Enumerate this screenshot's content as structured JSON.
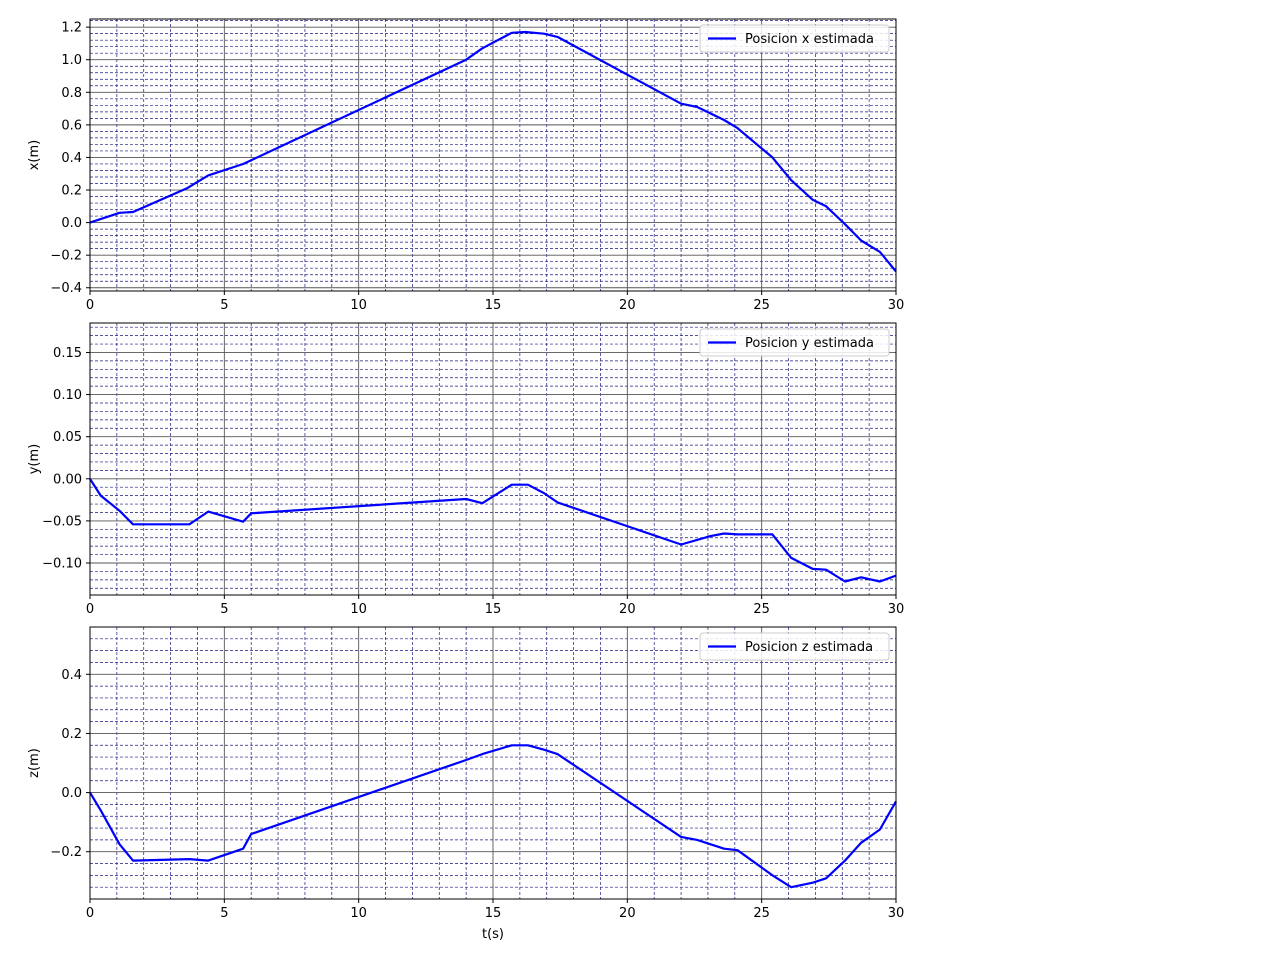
{
  "chart_data": [
    {
      "type": "line",
      "xlabel": "",
      "ylabel": "x(m)",
      "xlim": [
        0,
        30
      ],
      "ylim": [
        -0.42,
        1.25
      ],
      "xticks": [
        0,
        5,
        10,
        15,
        20,
        25,
        30
      ],
      "xtick_labels": [
        "0",
        "5",
        "10",
        "15",
        "20",
        "25",
        "30"
      ],
      "yticks": [
        -0.4,
        -0.2,
        0.0,
        0.2,
        0.4,
        0.6,
        0.8,
        1.0,
        1.2
      ],
      "ytick_labels": [
        "−0.4",
        "−0.2",
        "0.0",
        "0.2",
        "0.4",
        "0.6",
        "0.8",
        "1.0",
        "1.2"
      ],
      "grid": true,
      "minor_grid": true,
      "legend": "top-right",
      "series": [
        {
          "name": "Posicion x estimada",
          "color": "#0000ff",
          "x": [
            0,
            1.1,
            1.6,
            3.6,
            4.4,
            5.7,
            14.0,
            14.6,
            15.7,
            16.2,
            16.9,
            17.4,
            22.0,
            22.6,
            23.1,
            23.6,
            24.1,
            25.4,
            26.1,
            26.9,
            27.4,
            28.1,
            28.7,
            29.4,
            30.0
          ],
          "y": [
            0.0,
            0.06,
            0.065,
            0.21,
            0.29,
            0.36,
            1.0,
            1.07,
            1.165,
            1.17,
            1.16,
            1.14,
            0.73,
            0.71,
            0.67,
            0.63,
            0.58,
            0.4,
            0.26,
            0.14,
            0.1,
            -0.01,
            -0.11,
            -0.18,
            -0.3
          ]
        }
      ]
    },
    {
      "type": "line",
      "xlabel": "",
      "ylabel": "y(m)",
      "xlim": [
        0,
        30
      ],
      "ylim": [
        -0.138,
        0.185
      ],
      "xticks": [
        0,
        5,
        10,
        15,
        20,
        25,
        30
      ],
      "xtick_labels": [
        "0",
        "5",
        "10",
        "15",
        "20",
        "25",
        "30"
      ],
      "yticks": [
        -0.1,
        -0.05,
        0.0,
        0.05,
        0.1,
        0.15
      ],
      "ytick_labels": [
        "−0.10",
        "−0.05",
        "0.00",
        "0.05",
        "0.10",
        "0.15"
      ],
      "grid": true,
      "minor_grid": true,
      "legend": "top-right",
      "series": [
        {
          "name": "Posicion y estimada",
          "color": "#0000ff",
          "x": [
            0,
            0.4,
            1.1,
            1.6,
            3.7,
            4.4,
            5.7,
            6.0,
            14.0,
            14.6,
            15.7,
            16.3,
            16.9,
            17.4,
            22.0,
            23.1,
            23.6,
            24.1,
            25.4,
            26.1,
            26.9,
            27.4,
            28.1,
            28.7,
            29.4,
            30.0
          ],
          "y": [
            0.0,
            -0.02,
            -0.038,
            -0.054,
            -0.054,
            -0.039,
            -0.051,
            -0.041,
            -0.024,
            -0.029,
            -0.007,
            -0.007,
            -0.017,
            -0.028,
            -0.078,
            -0.068,
            -0.065,
            -0.066,
            -0.066,
            -0.094,
            -0.107,
            -0.108,
            -0.122,
            -0.117,
            -0.122,
            -0.115
          ]
        }
      ]
    },
    {
      "type": "line",
      "xlabel": "t(s)",
      "ylabel": "z(m)",
      "xlim": [
        0,
        30
      ],
      "ylim": [
        -0.36,
        0.56
      ],
      "xticks": [
        0,
        5,
        10,
        15,
        20,
        25,
        30
      ],
      "xtick_labels": [
        "0",
        "5",
        "10",
        "15",
        "20",
        "25",
        "30"
      ],
      "yticks": [
        -0.2,
        0.0,
        0.2,
        0.4
      ],
      "ytick_labels": [
        "−0.2",
        "0.0",
        "0.2",
        "0.4"
      ],
      "grid": true,
      "minor_grid": true,
      "legend": "top-right",
      "series": [
        {
          "name": "Posicion z estimada",
          "color": "#0000ff",
          "x": [
            0,
            0.4,
            1.1,
            1.6,
            3.7,
            4.4,
            5.7,
            6.0,
            14.0,
            14.6,
            15.7,
            16.3,
            16.9,
            17.4,
            22.0,
            22.6,
            23.1,
            23.6,
            24.1,
            25.4,
            26.1,
            26.9,
            27.4,
            28.1,
            28.7,
            29.4,
            30.0
          ],
          "y": [
            0.0,
            -0.06,
            -0.175,
            -0.23,
            -0.225,
            -0.23,
            -0.19,
            -0.14,
            0.11,
            0.13,
            0.16,
            0.16,
            0.145,
            0.13,
            -0.15,
            -0.16,
            -0.175,
            -0.19,
            -0.195,
            -0.28,
            -0.32,
            -0.305,
            -0.29,
            -0.23,
            -0.17,
            -0.125,
            -0.03
          ]
        }
      ]
    }
  ]
}
